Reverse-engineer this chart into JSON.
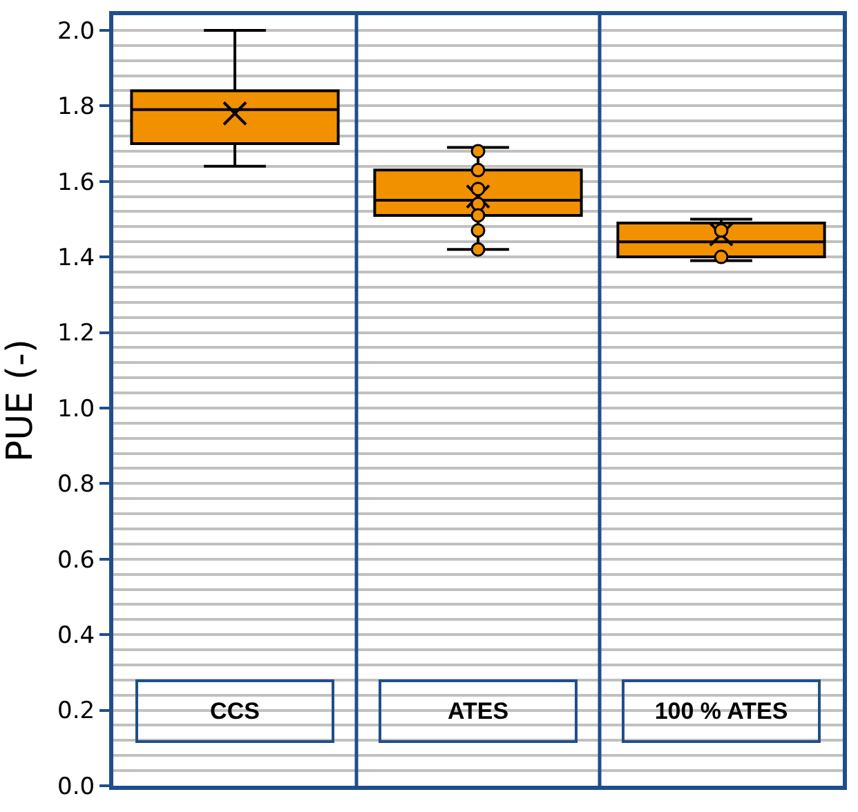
{
  "chart_data": {
    "type": "box",
    "ylabel": "PUE (-)",
    "categories": [
      "CCS",
      "ATES",
      "100 % ATES"
    ],
    "series": [
      {
        "color": "#f29100",
        "boxes": [
          {
            "low": 1.64,
            "q1": 1.7,
            "median": 1.79,
            "q3": 1.84,
            "high": 2.0,
            "mean": 1.78
          },
          {
            "low": 1.42,
            "q1": 1.51,
            "median": 1.55,
            "q3": 1.63,
            "high": 1.69,
            "mean": 1.56
          },
          {
            "low": 1.39,
            "q1": 1.4,
            "median": 1.44,
            "q3": 1.49,
            "high": 1.5,
            "mean": 1.46
          }
        ]
      },
      {
        "type": "scatter",
        "color": "#f29100",
        "marker": "circle",
        "x": [
          "ATES",
          "ATES",
          "ATES",
          "ATES",
          "ATES",
          "ATES",
          "ATES",
          "100 % ATES",
          "100 % ATES"
        ],
        "values": [
          1.68,
          1.63,
          1.58,
          1.54,
          1.51,
          1.47,
          1.42,
          1.47,
          1.4
        ]
      }
    ],
    "ylim": [
      0,
      2.04
    ],
    "yticks": [
      {
        "value": 0,
        "label": "0.0"
      },
      {
        "value": 0.04,
        "label": null
      },
      {
        "value": 0.08,
        "label": null
      },
      {
        "value": 0.12,
        "label": null
      },
      {
        "value": 0.16,
        "label": null
      },
      0.2,
      {
        "value": 0.24,
        "label": null
      },
      {
        "value": 0.28,
        "label": null
      },
      {
        "value": 0.32,
        "label": null
      },
      {
        "value": 0.36,
        "label": null
      },
      0.4,
      {
        "value": 0.44,
        "label": null
      },
      {
        "value": 0.48,
        "label": null
      },
      {
        "value": 0.52,
        "label": null
      },
      {
        "value": 0.56,
        "label": null
      },
      0.6,
      {
        "value": 0.64,
        "label": null
      },
      {
        "value": 0.68,
        "label": null
      },
      {
        "value": 0.72,
        "label": null
      },
      {
        "value": 0.76,
        "label": null
      },
      0.8,
      {
        "value": 0.84,
        "label": null
      },
      {
        "value": 0.88,
        "label": null
      },
      {
        "value": 0.92,
        "label": null
      },
      {
        "value": 0.96,
        "label": null
      },
      {
        "value": 1.0,
        "label": "1.0"
      },
      {
        "value": 1.04,
        "label": null
      },
      {
        "value": 1.08,
        "label": null
      },
      {
        "value": 1.12,
        "label": null
      },
      {
        "value": 1.16,
        "label": null
      },
      1.2,
      {
        "value": 1.24,
        "label": null
      },
      {
        "value": 1.28,
        "label": null
      },
      {
        "value": 1.32,
        "label": null
      },
      {
        "value": 1.36,
        "label": null
      },
      1.4,
      {
        "value": 1.44,
        "label": null
      },
      {
        "value": 1.48,
        "label": null
      },
      {
        "value": 1.52,
        "label": null
      },
      {
        "value": 1.56,
        "label": null
      },
      1.6,
      {
        "value": 1.64,
        "label": null
      },
      {
        "value": 1.68,
        "label": null
      },
      {
        "value": 1.72,
        "label": null
      },
      {
        "value": 1.76,
        "label": null
      },
      1.8,
      {
        "value": 1.84,
        "label": null
      },
      {
        "value": 1.88,
        "label": null
      },
      {
        "value": 1.92,
        "label": null
      },
      {
        "value": 1.96,
        "label": null
      },
      {
        "value": 2.0,
        "label": "2.0"
      }
    ],
    "grid": "y",
    "tick_labels": "y"
  }
}
